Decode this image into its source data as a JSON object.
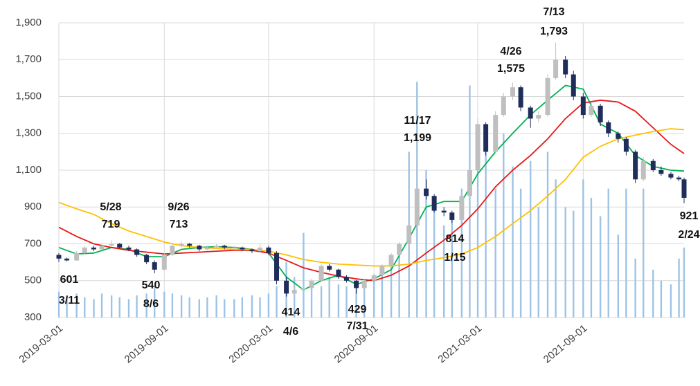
{
  "chart_data": {
    "type": "candlestick",
    "xlim": [
      "2019-03-01",
      "2022-02-24"
    ],
    "xticks": [
      "2019-03-01",
      "2019-09-01",
      "2020-03-01",
      "2020-09-01",
      "2021-03-01",
      "2021-09-01"
    ],
    "ylim": [
      300,
      1900
    ],
    "yticks": [
      300,
      500,
      700,
      900,
      {
        "value": 1100,
        "label": "1,100"
      },
      {
        "value": 1300,
        "label": "1,300"
      },
      {
        "value": 1500,
        "label": "1,500"
      },
      {
        "value": 1700,
        "label": "1,700"
      },
      {
        "value": 1900,
        "label": "1,900"
      }
    ],
    "grid": true,
    "up_color": "#bfbfbf",
    "down_color": "#1f2d5a",
    "volume_color": "#9dc3e6",
    "x": [
      "2019-03-01",
      "2019-03-15",
      "2019-04-01",
      "2019-04-15",
      "2019-05-01",
      "2019-05-15",
      "2019-06-01",
      "2019-06-15",
      "2019-07-01",
      "2019-07-15",
      "2019-08-01",
      "2019-08-15",
      "2019-09-01",
      "2019-09-15",
      "2019-10-01",
      "2019-10-15",
      "2019-11-01",
      "2019-11-15",
      "2019-12-01",
      "2019-12-15",
      "2020-01-01",
      "2020-01-15",
      "2020-02-01",
      "2020-02-15",
      "2020-03-01",
      "2020-03-15",
      "2020-04-01",
      "2020-04-15",
      "2020-05-01",
      "2020-05-15",
      "2020-06-01",
      "2020-06-15",
      "2020-07-01",
      "2020-07-15",
      "2020-08-01",
      "2020-08-15",
      "2020-09-01",
      "2020-09-15",
      "2020-10-01",
      "2020-10-15",
      "2020-11-01",
      "2020-11-15",
      "2020-12-01",
      "2020-12-15",
      "2021-01-01",
      "2021-01-15",
      "2021-02-01",
      "2021-02-15",
      "2021-03-01",
      "2021-03-15",
      "2021-04-01",
      "2021-04-15",
      "2021-05-01",
      "2021-05-15",
      "2021-06-01",
      "2021-06-15",
      "2021-07-01",
      "2021-07-15",
      "2021-08-01",
      "2021-08-15",
      "2021-09-01",
      "2021-09-15",
      "2021-10-01",
      "2021-10-15",
      "2021-11-01",
      "2021-11-15",
      "2021-12-01",
      "2021-12-15",
      "2022-01-01",
      "2022-01-15",
      "2022-02-01",
      "2022-02-15",
      "2022-02-24"
    ],
    "open": [
      640,
      620,
      610,
      650,
      680,
      670,
      690,
      700,
      680,
      670,
      640,
      600,
      560,
      640,
      690,
      700,
      690,
      670,
      680,
      690,
      680,
      680,
      670,
      660,
      680,
      650,
      500,
      430,
      450,
      460,
      500,
      580,
      560,
      520,
      500,
      460,
      500,
      530,
      580,
      640,
      700,
      800,
      1000,
      960,
      880,
      870,
      830,
      960,
      1100,
      1350,
      1200,
      1400,
      1500,
      1550,
      1440,
      1380,
      1400,
      1600,
      1700,
      1620,
      1500,
      1400,
      1450,
      1360,
      1300,
      1270,
      1200,
      1050,
      1150,
      1100,
      1080,
      1060,
      1050
    ],
    "high": [
      650,
      625,
      660,
      690,
      690,
      700,
      719,
      705,
      690,
      675,
      645,
      610,
      650,
      700,
      713,
      705,
      695,
      690,
      700,
      695,
      690,
      685,
      675,
      700,
      690,
      660,
      520,
      470,
      480,
      510,
      590,
      590,
      565,
      530,
      505,
      510,
      540,
      590,
      650,
      710,
      820,
      1199,
      1050,
      970,
      900,
      880,
      980,
      1120,
      1380,
      1360,
      1420,
      1520,
      1575,
      1560,
      1450,
      1420,
      1620,
      1793,
      1720,
      1640,
      1520,
      1470,
      1460,
      1370,
      1310,
      1280,
      1210,
      1170,
      1160,
      1120,
      1090,
      1070,
      1060
    ],
    "low": [
      601,
      605,
      608,
      645,
      660,
      665,
      685,
      675,
      660,
      630,
      590,
      540,
      555,
      635,
      680,
      680,
      660,
      665,
      675,
      670,
      670,
      660,
      650,
      655,
      640,
      480,
      414,
      425,
      440,
      455,
      495,
      550,
      510,
      490,
      429,
      455,
      495,
      525,
      575,
      635,
      690,
      790,
      940,
      870,
      850,
      814,
      825,
      950,
      1090,
      1180,
      1190,
      1390,
      1480,
      1420,
      1330,
      1360,
      1390,
      1590,
      1600,
      1480,
      1380,
      1390,
      1340,
      1280,
      1250,
      1180,
      1030,
      1040,
      1090,
      1070,
      1050,
      1040,
      921
    ],
    "close": [
      620,
      610,
      650,
      680,
      670,
      690,
      700,
      680,
      670,
      640,
      600,
      560,
      640,
      690,
      700,
      690,
      670,
      680,
      690,
      680,
      680,
      670,
      660,
      680,
      650,
      500,
      430,
      450,
      460,
      500,
      580,
      560,
      520,
      500,
      460,
      500,
      530,
      580,
      640,
      700,
      800,
      1000,
      960,
      880,
      870,
      830,
      960,
      1100,
      1350,
      1200,
      1400,
      1500,
      1550,
      1440,
      1380,
      1400,
      1600,
      1700,
      1620,
      1500,
      1400,
      1450,
      1360,
      1300,
      1270,
      1200,
      1050,
      1150,
      1100,
      1080,
      1060,
      1050,
      950
    ],
    "volume": [
      440,
      420,
      430,
      410,
      400,
      430,
      420,
      410,
      400,
      420,
      430,
      470,
      440,
      430,
      420,
      410,
      400,
      410,
      420,
      400,
      400,
      410,
      420,
      410,
      430,
      470,
      600,
      520,
      760,
      500,
      470,
      520,
      480,
      470,
      460,
      490,
      500,
      560,
      620,
      700,
      1200,
      1580,
      1100,
      900,
      800,
      850,
      1000,
      1560,
      1100,
      1250,
      1000,
      1300,
      1120,
      1000,
      1150,
      900,
      1200,
      1050,
      900,
      880,
      1050,
      950,
      850,
      1000,
      750,
      1000,
      620,
      1000,
      560,
      500,
      480,
      620,
      680
    ],
    "lines": {
      "x": [
        "2019-03-01",
        "2019-04-01",
        "2019-05-01",
        "2019-06-01",
        "2019-07-01",
        "2019-08-01",
        "2019-09-01",
        "2019-10-01",
        "2019-11-01",
        "2019-12-01",
        "2020-01-01",
        "2020-02-01",
        "2020-03-01",
        "2020-04-01",
        "2020-05-01",
        "2020-06-01",
        "2020-07-01",
        "2020-08-01",
        "2020-09-01",
        "2020-10-01",
        "2020-11-01",
        "2020-12-01",
        "2021-01-01",
        "2021-02-01",
        "2021-03-01",
        "2021-04-01",
        "2021-05-01",
        "2021-06-01",
        "2021-07-01",
        "2021-08-01",
        "2021-09-01",
        "2021-10-01",
        "2021-11-01",
        "2021-12-01",
        "2022-01-01",
        "2022-02-01",
        "2022-02-24"
      ],
      "series": [
        {
          "color": "#00b050",
          "values": [
            680,
            645,
            650,
            680,
            670,
            630,
            630,
            670,
            680,
            685,
            680,
            670,
            650,
            520,
            450,
            500,
            530,
            480,
            510,
            560,
            730,
            900,
            930,
            930,
            1080,
            1200,
            1300,
            1400,
            1480,
            1560,
            1540,
            1350,
            1300,
            1180,
            1120,
            1100,
            1095
          ]
        },
        {
          "color": "#e81515",
          "values": [
            790,
            740,
            700,
            680,
            665,
            655,
            645,
            650,
            655,
            660,
            665,
            665,
            650,
            610,
            570,
            545,
            525,
            510,
            500,
            530,
            580,
            650,
            720,
            800,
            890,
            1010,
            1100,
            1180,
            1270,
            1380,
            1465,
            1480,
            1470,
            1420,
            1330,
            1240,
            1190
          ]
        },
        {
          "color": "#ffc000",
          "values": [
            925,
            890,
            860,
            810,
            770,
            740,
            710,
            690,
            680,
            675,
            670,
            670,
            660,
            640,
            615,
            600,
            590,
            585,
            580,
            580,
            590,
            610,
            625,
            645,
            680,
            740,
            810,
            880,
            960,
            1050,
            1170,
            1230,
            1270,
            1290,
            1310,
            1325,
            1320
          ]
        }
      ]
    },
    "annotations": [
      {
        "x": "2019-03-11",
        "y": 601,
        "date": "3/11",
        "label": "601"
      },
      {
        "x": "2019-05-28",
        "y": 719,
        "date": "5/28",
        "label": "719"
      },
      {
        "x": "2019-09-26",
        "y": 713,
        "date": "9/26",
        "label": "713"
      },
      {
        "x": "2019-08-06",
        "y": 540,
        "date": "8/6",
        "label": "540"
      },
      {
        "x": "2020-04-06",
        "y": 414,
        "date": "4/6",
        "label": "414"
      },
      {
        "x": "2020-07-31",
        "y": 429,
        "date": "7/31",
        "label": "429"
      },
      {
        "x": "2020-11-17",
        "y": 1199,
        "date": "11/17",
        "label": "1,199"
      },
      {
        "x": "2021-01-15",
        "y": 814,
        "date": "1/15",
        "label": "814"
      },
      {
        "x": "2021-04-26",
        "y": 1575,
        "date": "4/26",
        "label": "1,575"
      },
      {
        "x": "2021-07-13",
        "y": 1793,
        "date": "7/13",
        "label": "1,793"
      },
      {
        "x": "2022-02-24",
        "y": 921,
        "date": "2/24",
        "label": "921"
      }
    ]
  }
}
